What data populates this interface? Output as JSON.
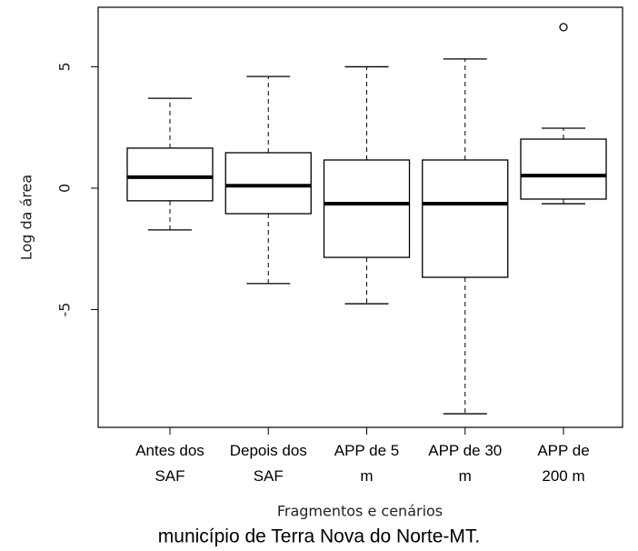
{
  "chart_data": {
    "type": "boxplot",
    "xlabel": "Fragmentos e cenários",
    "ylabel": "Log da área",
    "caption": "município de Terra Nova do Norte-MT.",
    "categories": [
      [
        "Antes dos",
        "SAF"
      ],
      [
        "Depois dos",
        "SAF"
      ],
      [
        "APP de 5",
        "m"
      ],
      [
        "APP de 30",
        "m"
      ],
      [
        "APP de",
        "200 m"
      ]
    ],
    "boxes": [
      {
        "whisker_low": -1.72,
        "q1": -0.52,
        "median": 0.45,
        "q3": 1.65,
        "whisker_high": 3.7,
        "outliers": []
      },
      {
        "whisker_low": -3.93,
        "q1": -1.05,
        "median": 0.1,
        "q3": 1.46,
        "whisker_high": 4.6,
        "outliers": []
      },
      {
        "whisker_low": -4.76,
        "q1": -2.85,
        "median": -0.64,
        "q3": 1.16,
        "whisker_high": 5.0,
        "outliers": []
      },
      {
        "whisker_low": -9.29,
        "q1": -3.67,
        "median": -0.64,
        "q3": 1.16,
        "whisker_high": 5.32,
        "outliers": []
      },
      {
        "whisker_low": -0.64,
        "q1": -0.45,
        "median": 0.52,
        "q3": 2.02,
        "whisker_high": 2.47,
        "outliers": [
          6.63
        ]
      }
    ],
    "color": "#000000",
    "ylim": [
      -9.85,
      7.45
    ],
    "yticks": [
      -5,
      0,
      5
    ]
  }
}
